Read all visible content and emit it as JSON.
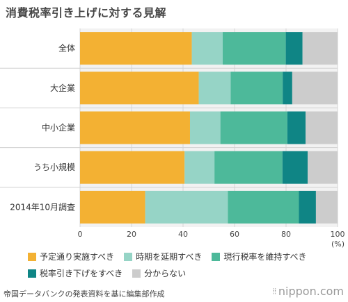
{
  "page": {
    "title": "消費税率引き上げに対する見解",
    "source": "帝国データバンクの発表資料を基に編集部作成",
    "brand": "nippon.com"
  },
  "chart_data": {
    "type": "bar",
    "orientation": "horizontal",
    "stacked": true,
    "title": "消費税率引き上げに対する見解",
    "xlabel": "(%)",
    "xlim": [
      0,
      100
    ],
    "xticks": [
      0,
      20,
      40,
      60,
      80,
      100
    ],
    "grid": true,
    "legend_position": "bottom",
    "categories": [
      "全体",
      "大企業",
      "中小企業",
      "うち小規模",
      "2014年10月調査"
    ],
    "series": [
      {
        "name": "予定通り実施すべき",
        "color": "#f3b133",
        "values": [
          43.4,
          46.1,
          42.7,
          40.6,
          25.3
        ]
      },
      {
        "name": "時期を延期すべき",
        "color": "#96d4c6",
        "values": [
          12.0,
          12.4,
          11.8,
          11.6,
          32.1
        ]
      },
      {
        "name": "現行税率を維持すべき",
        "color": "#4db99a",
        "values": [
          24.5,
          20.2,
          26.0,
          26.4,
          27.6
        ]
      },
      {
        "name": "税率引き下げをすべき",
        "color": "#0f8585",
        "values": [
          6.5,
          3.7,
          7.1,
          9.8,
          6.6
        ]
      },
      {
        "name": "分からない",
        "color": "#cccccc",
        "values": [
          13.6,
          17.6,
          12.4,
          11.6,
          8.4
        ]
      }
    ]
  }
}
